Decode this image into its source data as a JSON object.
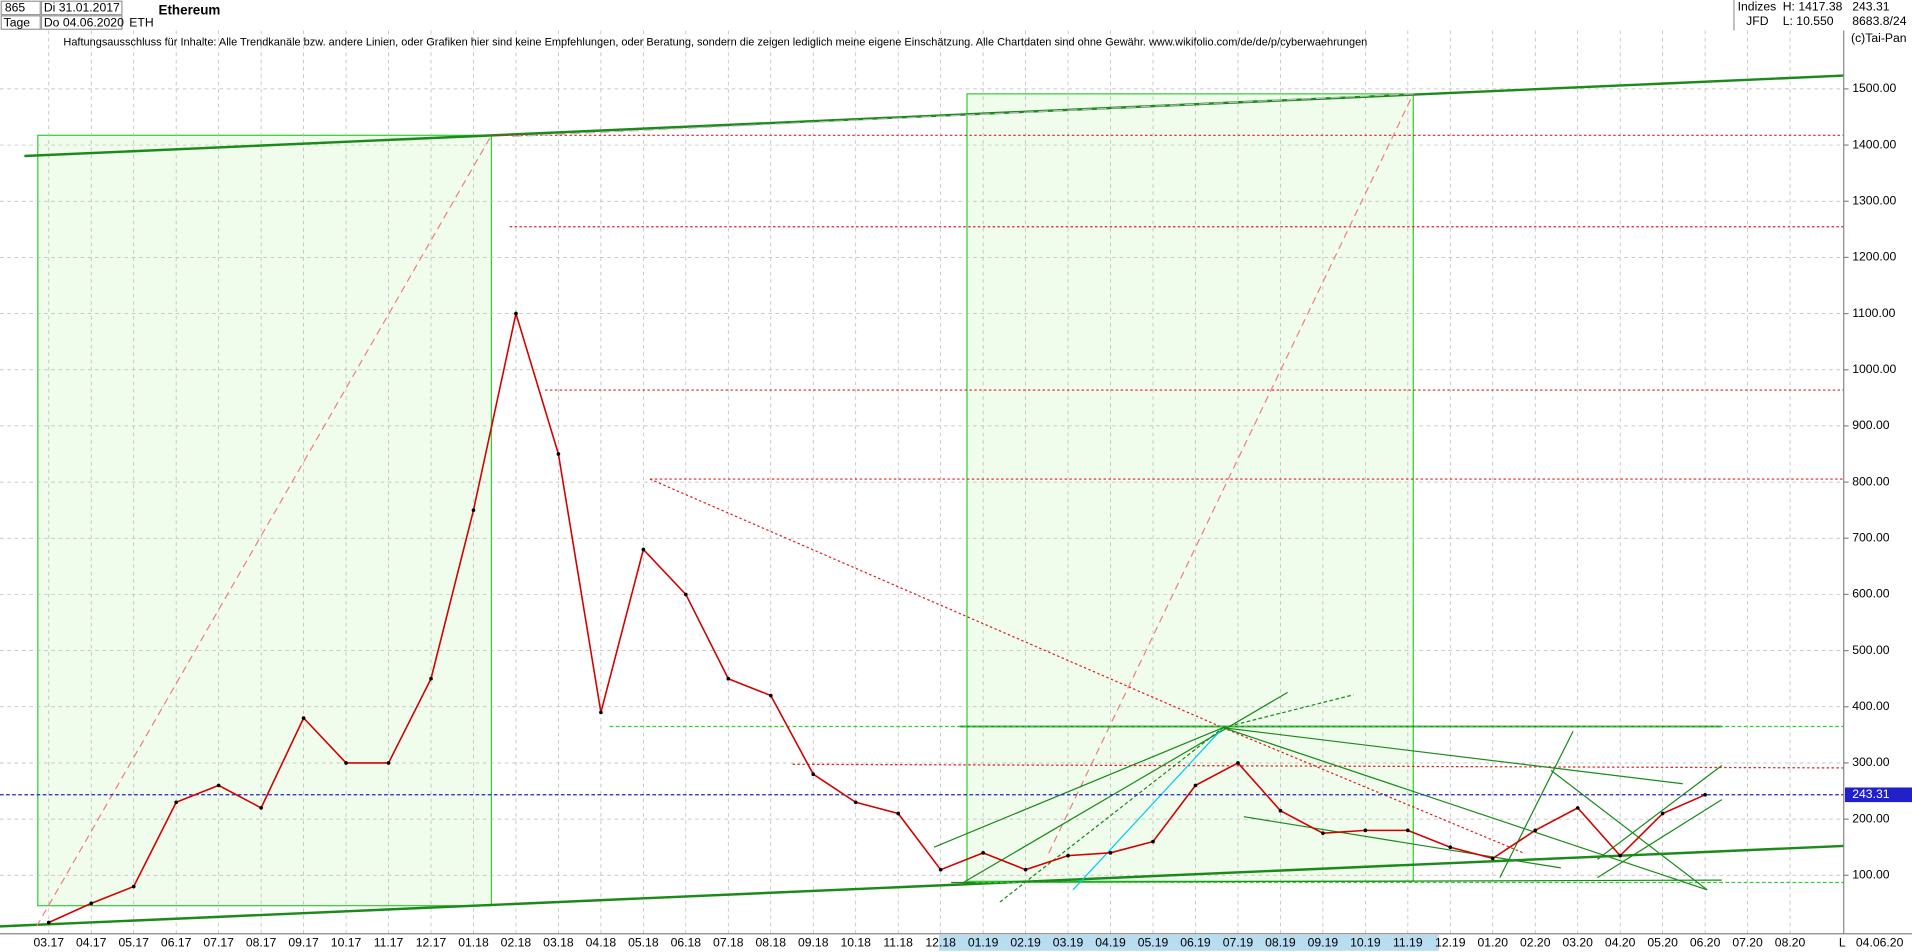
{
  "header": {
    "count": "865",
    "start_date": "Di 31.01.2017",
    "period": "Tage",
    "end_date": "Do 04.06.2020",
    "symbol": "ETH",
    "category": "Indizes",
    "high": "H: 1417.38",
    "source": "JFD",
    "low": "L: 10.550",
    "extra": "8683.8/24",
    "copyright": "(c)Tai-Pan",
    "last_date": "04.06.20",
    "axis_mode": "L"
  },
  "chart_data": {
    "type": "line",
    "title": "Ethereum",
    "subtitle": "Haftungsausschluss für Inhalte: Alle Trendkanäle bzw. andere Linien, oder Grafiken hier sind keine Empfehlungen, oder Beratung, sondern die zeigen lediglich meine eigene Einschätzung. Alle Chartdaten sind ohne Gewähr.  www.wikifolio.com/de/de/p/cyberwaehrungen",
    "categories": [
      "03.17",
      "04.17",
      "05.17",
      "06.17",
      "07.17",
      "08.17",
      "09.17",
      "10.17",
      "11.17",
      "12.17",
      "01.18",
      "02.18",
      "03.18",
      "04.18",
      "05.18",
      "06.18",
      "07.18",
      "08.18",
      "09.18",
      "10.18",
      "11.18",
      "12.18",
      "01.19",
      "02.19",
      "03.19",
      "04.19",
      "05.19",
      "06.19",
      "07.19",
      "08.19",
      "09.19",
      "10.19",
      "11.19",
      "12.19",
      "01.20",
      "02.20",
      "03.20",
      "04.20",
      "05.20",
      "06.20",
      "07.20",
      "08.20"
    ],
    "series": [
      {
        "name": "ETH",
        "color": "#d40000",
        "values": [
          16,
          50,
          80,
          230,
          260,
          220,
          380,
          300,
          300,
          450,
          750,
          1100,
          850,
          390,
          680,
          600,
          450,
          420,
          280,
          230,
          210,
          110,
          140,
          110,
          135,
          140,
          160,
          260,
          300,
          215,
          175,
          180,
          180,
          150,
          130,
          180,
          220,
          135,
          210,
          243.31,
          null,
          null
        ]
      }
    ],
    "last_value": 243.31,
    "ylim": [
      -4,
      1604
    ],
    "yticks": [
      {
        "value": 100,
        "label": "100.00"
      },
      {
        "value": 200,
        "label": "200.00"
      },
      {
        "value": 300,
        "label": "300.00"
      },
      {
        "value": 400,
        "label": "400.00"
      },
      {
        "value": 500,
        "label": "500.00"
      },
      {
        "value": 600,
        "label": "600.00"
      },
      {
        "value": 700,
        "label": "700.00"
      },
      {
        "value": 800,
        "label": "800.00"
      },
      {
        "value": 900,
        "label": "900.00"
      },
      {
        "value": 1000,
        "label": "1000.00"
      },
      {
        "value": 1100,
        "label": "1100.00"
      },
      {
        "value": 1200,
        "label": "1200.00"
      },
      {
        "value": 1300,
        "label": "1300.00"
      },
      {
        "value": 1400,
        "label": "1400.00"
      },
      {
        "value": 1500,
        "label": "1500.00"
      }
    ],
    "grid": true
  }
}
